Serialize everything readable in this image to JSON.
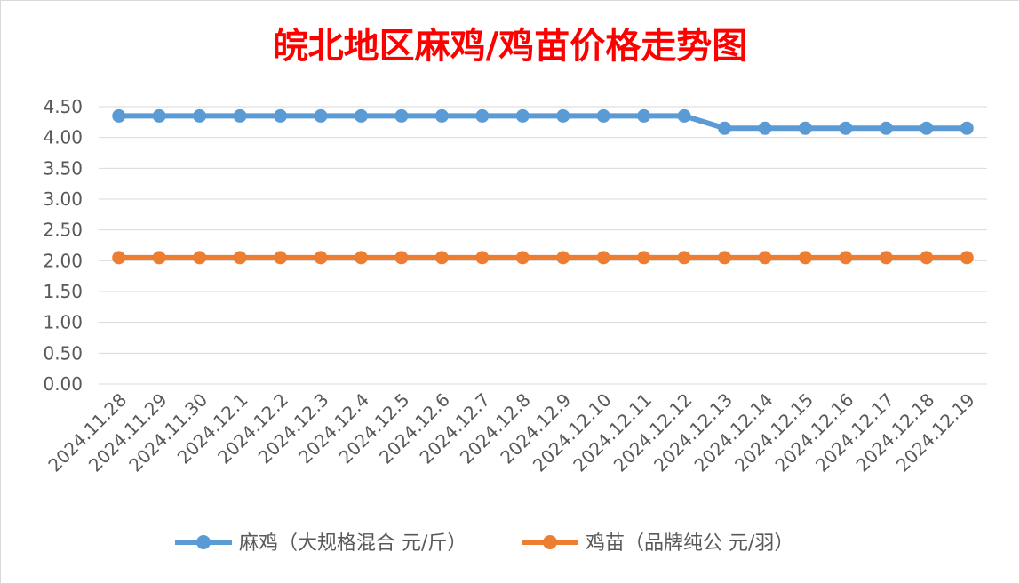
{
  "chart_data": {
    "type": "line",
    "title": "皖北地区麻鸡/鸡苗价格走势图",
    "categories": [
      "2024.11.28",
      "2024.11.29",
      "2024.11.30",
      "2024.12.1",
      "2024.12.2",
      "2024.12.3",
      "2024.12.4",
      "2024.12.5",
      "2024.12.6",
      "2024.12.7",
      "2024.12.8",
      "2024.12.9",
      "2024.12.10",
      "2024.12.11",
      "2024.12.12",
      "2024.12.13",
      "2024.12.14",
      "2024.12.15",
      "2024.12.16",
      "2024.12.17",
      "2024.12.18",
      "2024.12.19"
    ],
    "series": [
      {
        "name": "麻鸡（大规格混合 元/斤）",
        "color": "#5b9bd5",
        "values": [
          4.35,
          4.35,
          4.35,
          4.35,
          4.35,
          4.35,
          4.35,
          4.35,
          4.35,
          4.35,
          4.35,
          4.35,
          4.35,
          4.35,
          4.35,
          4.15,
          4.15,
          4.15,
          4.15,
          4.15,
          4.15,
          4.15
        ]
      },
      {
        "name": "鸡苗（品牌纯公 元/羽）",
        "color": "#ed7d31",
        "values": [
          2.05,
          2.05,
          2.05,
          2.05,
          2.05,
          2.05,
          2.05,
          2.05,
          2.05,
          2.05,
          2.05,
          2.05,
          2.05,
          2.05,
          2.05,
          2.05,
          2.05,
          2.05,
          2.05,
          2.05,
          2.05,
          2.05
        ]
      }
    ],
    "yticks": [
      "0.00",
      "0.50",
      "1.00",
      "1.50",
      "2.00",
      "2.50",
      "3.00",
      "3.50",
      "4.00",
      "4.50"
    ],
    "ylim": [
      0,
      4.5
    ],
    "grid": true,
    "legend_position": "bottom",
    "title_color": "#ff0000",
    "gridline_color": "#d9d9d9"
  }
}
